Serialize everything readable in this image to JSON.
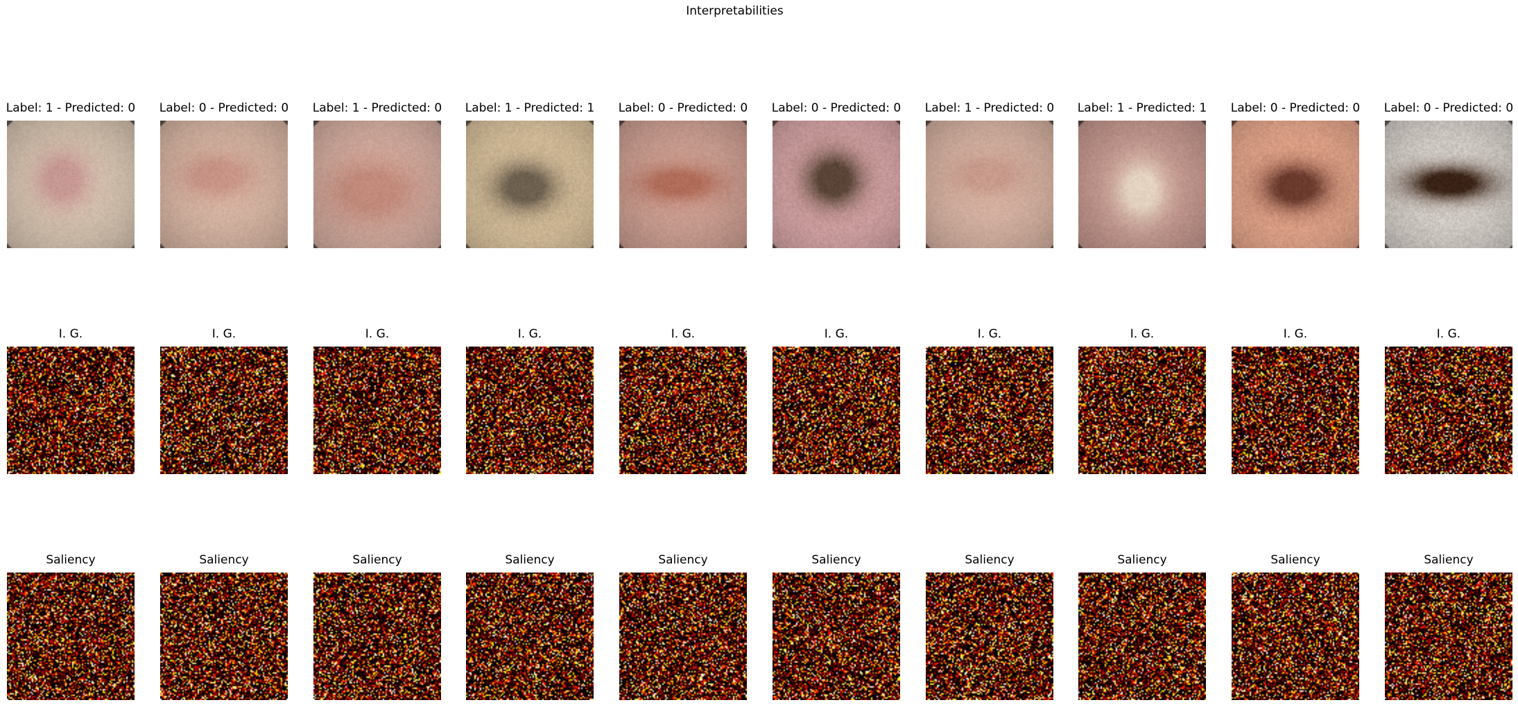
{
  "figure": {
    "title": "Interpretabilities",
    "rows": {
      "input_images": {
        "titles": [
          "Label: 1 - Predicted: 0",
          "Label: 0 - Predicted: 0",
          "Label: 1 - Predicted: 0",
          "Label: 1 - Predicted: 1",
          "Label: 0 - Predicted: 0",
          "Label: 0 - Predicted: 0",
          "Label: 1 - Predicted: 0",
          "Label: 1 - Predicted: 1",
          "Label: 0 - Predicted: 0",
          "Label: 0 - Predicted: 0"
        ],
        "colors": [
          {
            "bg": "#d9c6b3",
            "lesion": "#c99a95"
          },
          {
            "bg": "#d9b7a5",
            "lesion": "#c99587"
          },
          {
            "bg": "#d7b0a3",
            "lesion": "#c38b7c"
          },
          {
            "bg": "#dcc49f",
            "lesion": "#6e6150"
          },
          {
            "bg": "#cfa194",
            "lesion": "#b26d5a"
          },
          {
            "bg": "#d9a7a8",
            "lesion": "#5a4538"
          },
          {
            "bg": "#d8b4a4",
            "lesion": "#c99c8d"
          },
          {
            "bg": "#c79a91",
            "lesion": "#e6d4c2"
          },
          {
            "bg": "#e9a98e",
            "lesion": "#6b3b2e"
          },
          {
            "bg": "#d8d2cc",
            "lesion": "#3a2316"
          }
        ]
      },
      "integrated_gradients": {
        "titles": [
          "I. G.",
          "I. G.",
          "I. G.",
          "I. G.",
          "I. G.",
          "I. G.",
          "I. G.",
          "I. G.",
          "I. G.",
          "I. G."
        ],
        "colormap": "hot"
      },
      "saliency": {
        "titles": [
          "Saliency",
          "Saliency",
          "Saliency",
          "Saliency",
          "Saliency",
          "Saliency",
          "Saliency",
          "Saliency",
          "Saliency",
          "Saliency"
        ],
        "colormap": "hot"
      }
    }
  }
}
